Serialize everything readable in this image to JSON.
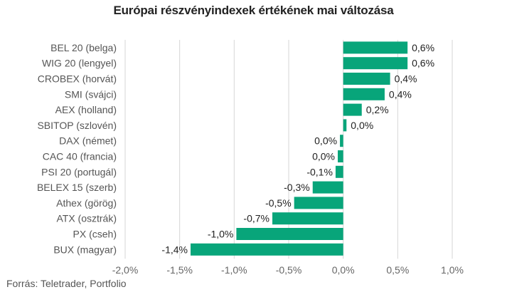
{
  "chart_data": {
    "type": "bar",
    "orientation": "horizontal",
    "title": "Európai részvényindexek értékének mai változása",
    "categories": [
      "BEL 20 (belga)",
      "WIG 20 (lengyel)",
      "CROBEX (horvát)",
      "SMI (svájci)",
      "AEX (holland)",
      "SBITOP (szlovén)",
      "DAX (német)",
      "CAC 40 (francia)",
      "PSI 20 (portugál)",
      "BELEX 15 (szerb)",
      "Athex (görög)",
      "ATX (osztrák)",
      "PX (cseh)",
      "BUX (magyar)"
    ],
    "values": [
      0.59,
      0.59,
      0.43,
      0.38,
      0.17,
      0.03,
      -0.03,
      -0.05,
      -0.07,
      -0.28,
      -0.45,
      -0.65,
      -0.98,
      -1.4
    ],
    "value_labels": [
      "0,6%",
      "0,6%",
      "0,4%",
      "0,4%",
      "0,2%",
      "0,0%",
      "0,0%",
      "0,0%",
      "-0,1%",
      "-0,3%",
      "-0,5%",
      "-0,7%",
      "-1,0%",
      "-1,4%"
    ],
    "xlim": [
      -2.0,
      1.0
    ],
    "x_ticks": [
      -2.0,
      -1.5,
      -1.0,
      -0.5,
      0.0,
      0.5,
      1.0
    ],
    "x_tick_labels": [
      "-2,0%",
      "-1,5%",
      "-1,0%",
      "-0,5%",
      "0,0%",
      "0,5%",
      "1,0%"
    ],
    "grid": true,
    "bar_color": "#08a57a",
    "xlabel": "",
    "ylabel": ""
  },
  "source": "Forrás: Teletrader, Portfolio"
}
